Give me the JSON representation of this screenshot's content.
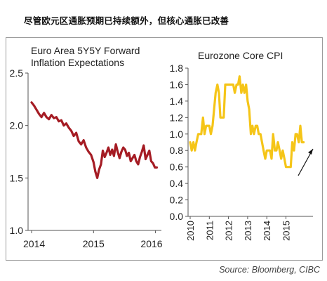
{
  "headline": "尽管欧元区通胀预期已持续额外，但核心通胀已改善",
  "source": "Source:  Bloomberg, CIBC",
  "colors": {
    "left_series": "#a51c24",
    "right_series": "#f5c518",
    "arrow": "#111111",
    "axis": "#555555"
  },
  "chart_data": [
    {
      "type": "line",
      "title": [
        "Euro Area 5Y5Y Forward",
        "Inflation Expectations"
      ],
      "xlabel": "",
      "ylabel": "",
      "xlim": [
        2014.0,
        2016.05
      ],
      "ylim": [
        1.0,
        2.5
      ],
      "yticks": [
        "2.5",
        "2.0",
        "1.5",
        "1.0"
      ],
      "yticks_values": [
        2.5,
        2.0,
        1.5,
        1.0
      ],
      "xticks": [
        "2014",
        "2015",
        "2016"
      ],
      "xticks_values": [
        2014.0,
        2015.0,
        2016.0
      ],
      "grid": false,
      "series": [
        {
          "x": [
            2014.0,
            2014.04,
            2014.08,
            2014.12,
            2014.16,
            2014.2,
            2014.24,
            2014.28,
            2014.32,
            2014.36,
            2014.4,
            2014.44,
            2014.48,
            2014.52,
            2014.56,
            2014.6,
            2014.64,
            2014.68,
            2014.72,
            2014.76,
            2014.8,
            2014.84,
            2014.88,
            2014.92,
            2014.96,
            2015.0,
            2015.03,
            2015.06,
            2015.09,
            2015.12,
            2015.15,
            2015.18,
            2015.21,
            2015.24,
            2015.27,
            2015.3,
            2015.33,
            2015.36,
            2015.39,
            2015.42,
            2015.45,
            2015.48,
            2015.51,
            2015.54,
            2015.57,
            2015.6,
            2015.63,
            2015.66,
            2015.69,
            2015.72,
            2015.75,
            2015.78,
            2015.81,
            2015.84,
            2015.87,
            2015.9,
            2015.93,
            2015.96,
            2015.99,
            2016.02
          ],
          "values": [
            2.22,
            2.19,
            2.15,
            2.11,
            2.08,
            2.12,
            2.08,
            2.06,
            2.1,
            2.07,
            2.08,
            2.04,
            2.05,
            2.0,
            2.02,
            1.98,
            1.95,
            1.9,
            1.93,
            1.85,
            1.82,
            1.86,
            1.79,
            1.75,
            1.72,
            1.65,
            1.56,
            1.5,
            1.58,
            1.63,
            1.76,
            1.7,
            1.74,
            1.79,
            1.72,
            1.77,
            1.71,
            1.82,
            1.75,
            1.69,
            1.75,
            1.79,
            1.77,
            1.71,
            1.74,
            1.66,
            1.69,
            1.72,
            1.66,
            1.63,
            1.7,
            1.75,
            1.81,
            1.68,
            1.72,
            1.76,
            1.66,
            1.64,
            1.6,
            1.6
          ]
        }
      ]
    },
    {
      "type": "line",
      "title": [
        "Eurozone Core CPI"
      ],
      "xlabel": "",
      "ylabel": "",
      "xlim": [
        2010.0,
        2016.3
      ],
      "ylim": [
        0.0,
        1.8
      ],
      "yticks": [
        "1.8",
        "1.6",
        "1.4",
        "1.2",
        "1.0",
        "0.8",
        "0.6",
        "0.4",
        "0.2",
        "0.0"
      ],
      "yticks_values": [
        1.8,
        1.6,
        1.4,
        1.2,
        1.0,
        0.8,
        0.6,
        0.4,
        0.2,
        0.0
      ],
      "xticks": [
        "2010",
        "2011",
        "2012",
        "2013",
        "2014",
        "2015"
      ],
      "xticks_values": [
        2010,
        2011,
        2012,
        2013,
        2014,
        2015
      ],
      "grid": false,
      "annotation": "upward arrow at end of series",
      "series": [
        {
          "x": [
            2010.0,
            2010.08,
            2010.17,
            2010.25,
            2010.33,
            2010.42,
            2010.5,
            2010.58,
            2010.67,
            2010.75,
            2010.83,
            2010.92,
            2011.0,
            2011.08,
            2011.17,
            2011.25,
            2011.33,
            2011.42,
            2011.5,
            2011.58,
            2011.67,
            2011.75,
            2011.83,
            2011.92,
            2012.0,
            2012.08,
            2012.17,
            2012.25,
            2012.33,
            2012.42,
            2012.5,
            2012.58,
            2012.67,
            2012.75,
            2012.83,
            2012.92,
            2013.0,
            2013.08,
            2013.17,
            2013.25,
            2013.33,
            2013.42,
            2013.5,
            2013.58,
            2013.67,
            2013.75,
            2013.83,
            2013.92,
            2014.0,
            2014.08,
            2014.17,
            2014.25,
            2014.33,
            2014.42,
            2014.5,
            2014.58,
            2014.67,
            2014.75,
            2014.83,
            2014.92,
            2015.0,
            2015.08,
            2015.17,
            2015.25,
            2015.33,
            2015.42,
            2015.5,
            2015.58,
            2015.67,
            2015.75,
            2015.83,
            2015.92
          ],
          "values": [
            0.9,
            0.8,
            0.9,
            0.8,
            0.9,
            1.0,
            1.0,
            1.0,
            1.2,
            1.0,
            1.1,
            1.1,
            1.1,
            1.0,
            1.1,
            1.3,
            1.5,
            1.6,
            1.5,
            1.2,
            1.2,
            1.2,
            1.6,
            1.6,
            1.6,
            1.6,
            1.6,
            1.6,
            1.5,
            1.6,
            1.6,
            1.7,
            1.5,
            1.6,
            1.5,
            1.6,
            1.4,
            1.3,
            1.0,
            1.1,
            1.0,
            1.1,
            1.1,
            1.0,
            1.0,
            0.9,
            0.8,
            0.7,
            0.8,
            0.8,
            0.8,
            0.7,
            1.0,
            0.8,
            0.8,
            0.9,
            0.8,
            0.7,
            0.8,
            0.7,
            0.6,
            0.6,
            0.6,
            0.6,
            0.9,
            0.8,
            1.0,
            1.0,
            0.9,
            1.1,
            0.9,
            0.9
          ]
        }
      ]
    }
  ]
}
